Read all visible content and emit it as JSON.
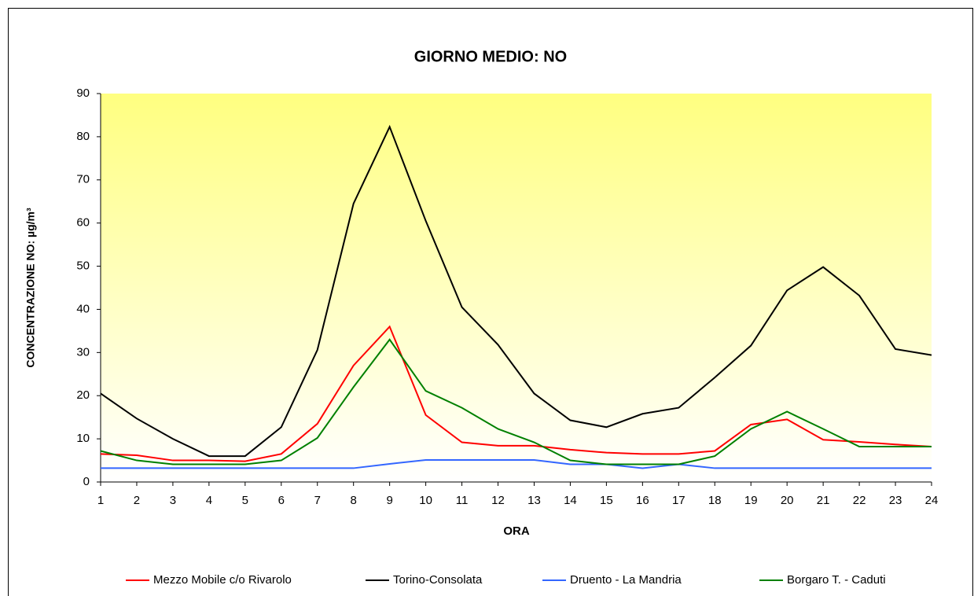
{
  "chart_data": {
    "type": "line",
    "title": "GIORNO MEDIO: NO",
    "x_label": "ORA",
    "y_label": "CONCENTRAZIONE NO: µg/m³",
    "x": [
      1,
      2,
      3,
      4,
      5,
      6,
      7,
      8,
      9,
      10,
      11,
      12,
      13,
      14,
      15,
      16,
      17,
      18,
      19,
      20,
      21,
      22,
      23,
      24
    ],
    "xlim": [
      1,
      24
    ],
    "xticks": [
      1,
      2,
      3,
      4,
      5,
      6,
      7,
      8,
      9,
      10,
      11,
      12,
      13,
      14,
      15,
      16,
      17,
      18,
      19,
      20,
      21,
      22,
      23,
      24
    ],
    "ylim": [
      0,
      90
    ],
    "yticks": [
      0,
      10,
      20,
      30,
      40,
      50,
      60,
      70,
      80,
      90
    ],
    "grid": false,
    "legend": "bottom",
    "series": [
      {
        "name": "Mezzo Mobile c/o Rivarolo",
        "color": "#ff0000",
        "values": [
          6.5,
          6.2,
          5,
          5,
          4.8,
          6.5,
          13.5,
          27,
          36,
          15.5,
          9.2,
          8.4,
          8.4,
          7.5,
          6.8,
          6.5,
          6.5,
          7.2,
          13.3,
          14.5,
          9.8,
          9.3,
          8.7,
          8.2
        ]
      },
      {
        "name": "Torino-Consolata",
        "color": "#000000",
        "values": [
          20.5,
          14.7,
          10,
          6,
          6,
          12.7,
          30.6,
          64.5,
          82.3,
          60.5,
          40.5,
          31.8,
          20.5,
          14.3,
          12.7,
          15.8,
          17.2,
          24.2,
          31.6,
          44.4,
          49.8,
          43.2,
          30.8,
          29.4
        ]
      },
      {
        "name": "Druento - La Mandria",
        "color": "#3366ff",
        "values": [
          3.2,
          3.2,
          3.2,
          3.2,
          3.2,
          3.2,
          3.2,
          3.2,
          4.2,
          5.1,
          5.1,
          5.1,
          5.1,
          4.1,
          4.1,
          3.2,
          4.1,
          3.2,
          3.2,
          3.2,
          3.2,
          3.2,
          3.2,
          3.2
        ]
      },
      {
        "name": "Borgaro T. - Caduti",
        "color": "#008000",
        "values": [
          7.2,
          5,
          4.1,
          4.1,
          4.1,
          5,
          10.2,
          22,
          33,
          21.1,
          17.2,
          12.3,
          9.2,
          5,
          4.1,
          4.1,
          4.1,
          6,
          12.3,
          16.3,
          12.3,
          8.2,
          8.2,
          8.2
        ]
      }
    ]
  }
}
